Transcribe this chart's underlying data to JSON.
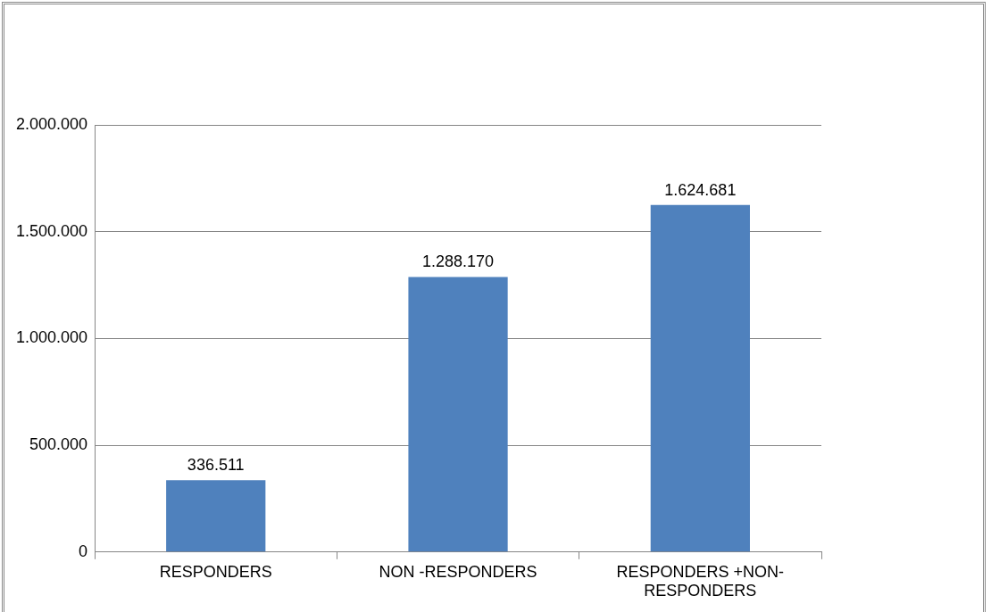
{
  "chart_data": {
    "type": "bar",
    "categories": [
      "RESPONDERS",
      "NON -RESPONDERS",
      "RESPONDERS +NON-RESPONDERS"
    ],
    "values": [
      336511,
      1288170,
      1624681
    ],
    "value_labels": [
      "336.511",
      "1.288.170",
      "1.624.681"
    ],
    "color": "#4f81bd",
    "ylim": [
      0,
      2000000
    ],
    "yticks": [
      {
        "value": 0,
        "label": "0"
      },
      {
        "value": 500000,
        "label": "500.000"
      },
      {
        "value": 1000000,
        "label": "1.000.000"
      },
      {
        "value": 1500000,
        "label": "1.500.000"
      },
      {
        "value": 2000000,
        "label": "2.000.000"
      }
    ],
    "grid": "y",
    "legend": false
  }
}
